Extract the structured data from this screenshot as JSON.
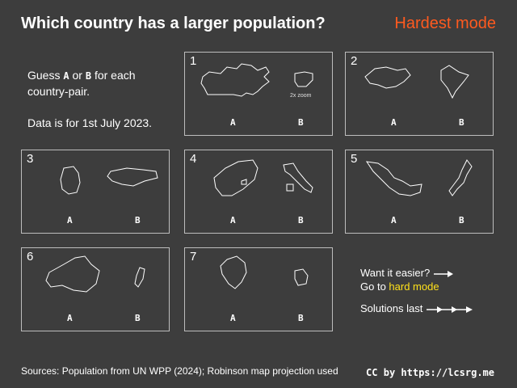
{
  "title": "Which country has a larger population?",
  "mode": "Hardest mode",
  "intro": {
    "guess_pre": "Guess",
    "guess_a": "A",
    "guess_mid": "or",
    "guess_b": "B",
    "guess_post": "for each country-pair.",
    "date_note": "Data is for 1st July 2023."
  },
  "panels": [
    {
      "number": "1",
      "label_a": "A",
      "label_b": "B",
      "note": "2x zoom"
    },
    {
      "number": "2",
      "label_a": "A",
      "label_b": "B"
    },
    {
      "number": "3",
      "label_a": "A",
      "label_b": "B"
    },
    {
      "number": "4",
      "label_a": "A",
      "label_b": "B"
    },
    {
      "number": "5",
      "label_a": "A",
      "label_b": "B"
    },
    {
      "number": "6",
      "label_a": "A",
      "label_b": "B"
    },
    {
      "number": "7",
      "label_a": "A",
      "label_b": "B"
    }
  ],
  "hints": {
    "easier": "Want it easier?",
    "goto_pre": "Go to",
    "goto_link": "hard mode",
    "solutions": "Solutions last"
  },
  "footer": {
    "sources": "Sources: Population from UN WPP (2024); Robinson map projection used",
    "license": "CC by https://lcsrg.me"
  },
  "colors": {
    "background": "#3d3d3d",
    "accent_mode": "#ff5a1f",
    "link": "#ffe11a"
  }
}
